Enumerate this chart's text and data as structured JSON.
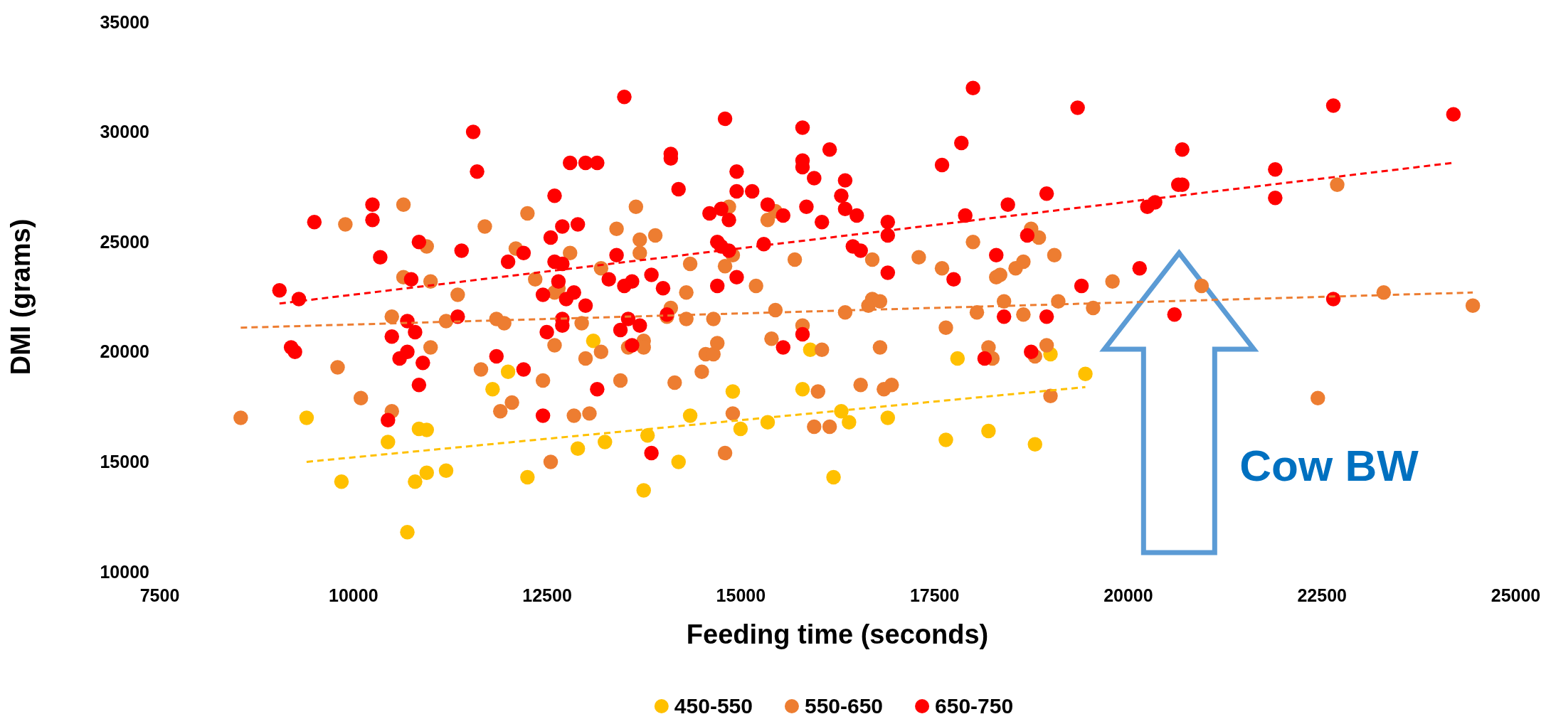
{
  "chart_data": {
    "type": "scatter",
    "xlabel": "Feeding time (seconds)",
    "ylabel": "DMI (grams)",
    "xlim": [
      7500,
      25000
    ],
    "xticks": [
      7500,
      10000,
      12500,
      15000,
      17500,
      20000,
      22500,
      25000
    ],
    "ylim": [
      10000,
      35000
    ],
    "yticks": [
      10000,
      15000,
      20000,
      25000,
      30000,
      35000
    ],
    "marker": "circle",
    "legend": "bottom",
    "annotations": [
      "Cow BW"
    ],
    "series": [
      {
        "name": "450-550",
        "color": "#ffc000",
        "x": [
          9400,
          9850,
          10450,
          10850,
          10950,
          10800,
          10950,
          10700,
          11200,
          11800,
          12000,
          12250,
          12900,
          13100,
          13250,
          13800,
          13750,
          14200,
          14350,
          14900,
          15000,
          15350,
          15800,
          15900,
          16300,
          16400,
          16200,
          16900,
          17650,
          17800,
          18200,
          18800,
          19000,
          19450
        ],
        "values": [
          17000,
          14100,
          15900,
          16500,
          16450,
          14100,
          14500,
          11800,
          14600,
          18300,
          19100,
          14300,
          15600,
          20500,
          15900,
          16200,
          13700,
          15000,
          17100,
          18200,
          16500,
          16800,
          18300,
          20100,
          17300,
          16800,
          14300,
          17000,
          16000,
          19700,
          16400,
          15800,
          19900,
          19000
        ]
      },
      {
        "name": "550-650",
        "color": "#ed7d31",
        "x": [
          8550,
          9800,
          9900,
          10100,
          10500,
          10500,
          10650,
          10650,
          10950,
          11000,
          11000,
          11350,
          11200,
          11700,
          11650,
          11850,
          11900,
          11950,
          12050,
          12100,
          12250,
          12350,
          12450,
          12550,
          12600,
          12650,
          12600,
          12800,
          12850,
          12950,
          13000,
          13050,
          13200,
          13200,
          13400,
          13450,
          13550,
          13650,
          13700,
          13700,
          13750,
          13750,
          13900,
          14100,
          14050,
          14150,
          14300,
          14300,
          14350,
          14500,
          14550,
          14650,
          14650,
          14700,
          14800,
          14850,
          14800,
          14900,
          14900,
          15200,
          15350,
          15400,
          15450,
          15450,
          15700,
          15800,
          15950,
          16050,
          16000,
          16150,
          16350,
          16550,
          16650,
          16700,
          16700,
          16800,
          16800,
          16950,
          16850,
          17300,
          17600,
          17650,
          18000,
          18050,
          18200,
          18250,
          18300,
          18350,
          18400,
          18550,
          18650,
          18650,
          18750,
          18850,
          18800,
          18950,
          19000,
          19050,
          19100,
          19550,
          19800,
          20950,
          22450,
          22700,
          23300,
          24450
        ],
        "values": [
          17000,
          19300,
          25800,
          17900,
          21600,
          17300,
          26700,
          23400,
          24800,
          20200,
          23200,
          22600,
          21400,
          25700,
          19200,
          21500,
          17300,
          21300,
          17700,
          24700,
          26300,
          23300,
          18700,
          15000,
          20300,
          22900,
          22700,
          24500,
          17100,
          21300,
          19700,
          17200,
          23800,
          20000,
          25600,
          18700,
          20200,
          26600,
          25100,
          24500,
          20500,
          20200,
          25300,
          22000,
          21600,
          18600,
          21500,
          22700,
          24000,
          19100,
          19900,
          21500,
          19900,
          20400,
          23900,
          26600,
          15400,
          17200,
          24400,
          23000,
          26000,
          20600,
          21900,
          26400,
          24200,
          21200,
          16600,
          20100,
          18200,
          16600,
          21800,
          18500,
          22100,
          22400,
          24200,
          20200,
          22300,
          18500,
          18300,
          24300,
          23800,
          21100,
          25000,
          21800,
          20200,
          19700,
          23400,
          23500,
          22300,
          23800,
          21700,
          24100,
          25600,
          25200,
          19800,
          20300,
          18000,
          24400,
          22300,
          22000,
          23200,
          23000,
          17900,
          27600,
          22700,
          22100
        ]
      },
      {
        "name": "650-750",
        "color": "#ff0000",
        "x": [
          9050,
          9200,
          9250,
          9300,
          9500,
          10250,
          10250,
          10350,
          10450,
          10500,
          10600,
          10700,
          10700,
          10750,
          10800,
          10850,
          10850,
          10900,
          11350,
          11400,
          11550,
          11600,
          11850,
          12000,
          12200,
          12200,
          12450,
          12450,
          12500,
          12550,
          12600,
          12600,
          12650,
          12700,
          12700,
          12700,
          12750,
          12700,
          12800,
          12850,
          12900,
          13000,
          13000,
          13150,
          13150,
          13300,
          13400,
          13450,
          13500,
          13500,
          13550,
          13600,
          13600,
          13700,
          13850,
          13850,
          14000,
          14050,
          14100,
          14100,
          14200,
          14600,
          14700,
          14750,
          14700,
          14750,
          14800,
          14850,
          14850,
          14950,
          14950,
          14950,
          15150,
          15300,
          15350,
          15550,
          15550,
          15800,
          15800,
          15800,
          15850,
          15800,
          15950,
          16050,
          16150,
          16300,
          16350,
          16350,
          16450,
          16500,
          16550,
          16900,
          16900,
          16900,
          17600,
          17750,
          17850,
          17900,
          18000,
          18150,
          18300,
          18400,
          18450,
          18700,
          18750,
          18950,
          18950,
          19350,
          19400,
          20150,
          20250,
          20350,
          20600,
          20650,
          20700,
          20700,
          21900,
          21900,
          22650,
          22650,
          24200
        ],
        "values": [
          22800,
          20200,
          20000,
          22400,
          25900,
          26700,
          26000,
          24300,
          16900,
          20700,
          19700,
          21400,
          20000,
          23300,
          20900,
          25000,
          18500,
          19500,
          21600,
          24600,
          30000,
          28200,
          19800,
          24100,
          24500,
          19200,
          17100,
          22600,
          20900,
          25200,
          27100,
          24100,
          23200,
          21200,
          24000,
          21500,
          22400,
          25700,
          28600,
          22700,
          25800,
          28600,
          22100,
          28600,
          18300,
          23300,
          24400,
          21000,
          31600,
          23000,
          21500,
          20300,
          23200,
          21200,
          15400,
          23500,
          22900,
          21700,
          29000,
          28800,
          27400,
          26300,
          23000,
          26500,
          25000,
          24800,
          30600,
          26000,
          24600,
          23400,
          28200,
          27300,
          27300,
          24900,
          26700,
          20200,
          26200,
          30200,
          28700,
          28400,
          26600,
          20800,
          27900,
          25900,
          29200,
          27100,
          27800,
          26500,
          24800,
          26200,
          24600,
          25900,
          25300,
          23600,
          28500,
          23300,
          29500,
          26200,
          32000,
          19700,
          24400,
          21600,
          26700,
          25300,
          20000,
          27200,
          21600,
          31100,
          23000,
          23800,
          26600,
          26800,
          21700,
          27600,
          27600,
          29200,
          28300,
          27000,
          31200,
          22400,
          30800
        ]
      },
      {
        "type": "line",
        "color": "#ffc000",
        "line_style": "dashed",
        "marker": "none",
        "x": [
          9400,
          19450
        ],
        "values": [
          15000,
          18400
        ]
      },
      {
        "type": "line",
        "color": "#ed7d31",
        "line_style": "dashed",
        "marker": "none",
        "x": [
          8550,
          24450
        ],
        "values": [
          21100,
          22700
        ]
      },
      {
        "type": "line",
        "color": "#ff0000",
        "line_style": "dashed",
        "marker": "none",
        "x": [
          9050,
          24200
        ],
        "values": [
          22200,
          28600
        ]
      }
    ]
  }
}
